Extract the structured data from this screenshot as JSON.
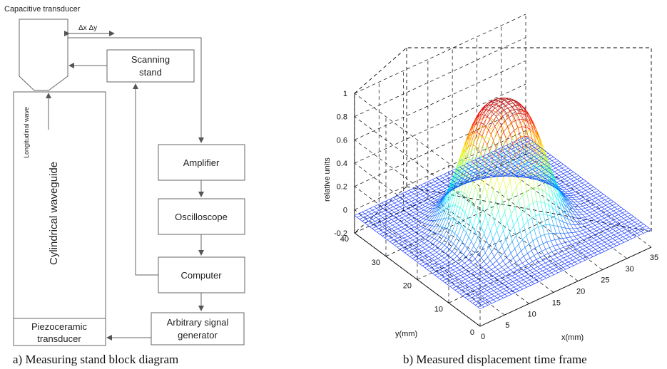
{
  "diagram": {
    "capacitive_transducer": "Capacitive transducer",
    "delta_xy": "Δx Δy",
    "scanning_stand": [
      "Scanning",
      "stand"
    ],
    "amplifier": "Amplifier",
    "oscilloscope": "Oscilloscope",
    "computer": "Computer",
    "signal_generator": [
      "Arbitrary signal",
      "generator"
    ],
    "longitudinal_wave": "Longitudinal wave",
    "waveguide": "Cylindrical waveguide",
    "piezo": [
      "Piezoceramic",
      "transducer"
    ],
    "caption": "a) Measuring stand block diagram"
  },
  "plot": {
    "zlabel": "relative units",
    "xlabel": "x(mm)",
    "ylabel": "y(mm)",
    "caption": "b) Measured displacement time frame"
  },
  "chart_data": {
    "type": "surface",
    "title": "",
    "xlabel": "x(mm)",
    "ylabel": "y(mm)",
    "zlabel": "relative units",
    "xlim": [
      0,
      35
    ],
    "ylim": [
      0,
      40
    ],
    "zlim": [
      -0.2,
      1
    ],
    "x_ticks": [
      0,
      5,
      10,
      15,
      20,
      25,
      30,
      35
    ],
    "y_ticks": [
      0,
      10,
      20,
      30,
      40
    ],
    "z_ticks": [
      "-0.2",
      "0",
      "0.2",
      "0.4",
      "0.6",
      "0.8",
      "1"
    ],
    "grid": true,
    "colormap": "jet",
    "surface": {
      "description": "flat-topped peak",
      "center_x": 17.5,
      "center_y": 20,
      "peak": 0.97,
      "baseline": -0.05
    }
  }
}
